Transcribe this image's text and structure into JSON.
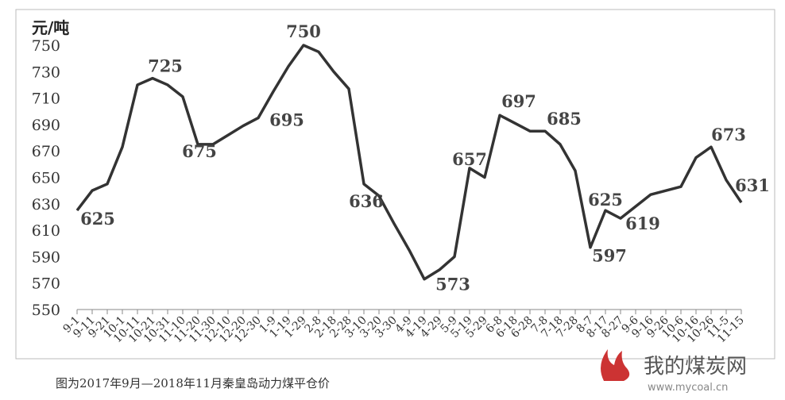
{
  "chart_data": {
    "type": "line",
    "y_axis_label": "元/吨",
    "caption": "图为2017年9月—2018年11月秦皇岛动力煤平仓价",
    "watermark": {
      "name": "我的煤炭网",
      "url": "www.mycoal.cn"
    },
    "categories": [
      "9-1",
      "9-11",
      "9-21",
      "10-1",
      "10-11",
      "10-21",
      "10-31",
      "11-10",
      "11-20",
      "11-30",
      "12-10",
      "12-20",
      "12-30",
      "1-9",
      "1-19",
      "1-29",
      "2-8",
      "2-18",
      "2-28",
      "3-10",
      "3-20",
      "3-30",
      "4-9",
      "4-19",
      "4-29",
      "5-9",
      "5-19",
      "5-29",
      "6-8",
      "6-18",
      "6-28",
      "7-8",
      "7-18",
      "7-28",
      "8-7",
      "8-17",
      "8-27",
      "9-6",
      "9-16",
      "9-26",
      "10-6",
      "10-16",
      "10-26",
      "11-5",
      "11-15"
    ],
    "series": [
      {
        "color": "#333333",
        "values": [
          625,
          640,
          645,
          673,
          720,
          725,
          720,
          711,
          675,
          675,
          682,
          689,
          695,
          715,
          734,
          750,
          745,
          730,
          717,
          645,
          636,
          615,
          595,
          573,
          580,
          590,
          657,
          650,
          697,
          691,
          685,
          685,
          675,
          655,
          597,
          625,
          619,
          628,
          637,
          640,
          643,
          665,
          673,
          648,
          631
        ]
      }
    ],
    "ylim": [
      550,
      750
    ],
    "yticks": [
      550,
      570,
      590,
      610,
      630,
      650,
      670,
      690,
      710,
      730,
      750
    ]
  }
}
